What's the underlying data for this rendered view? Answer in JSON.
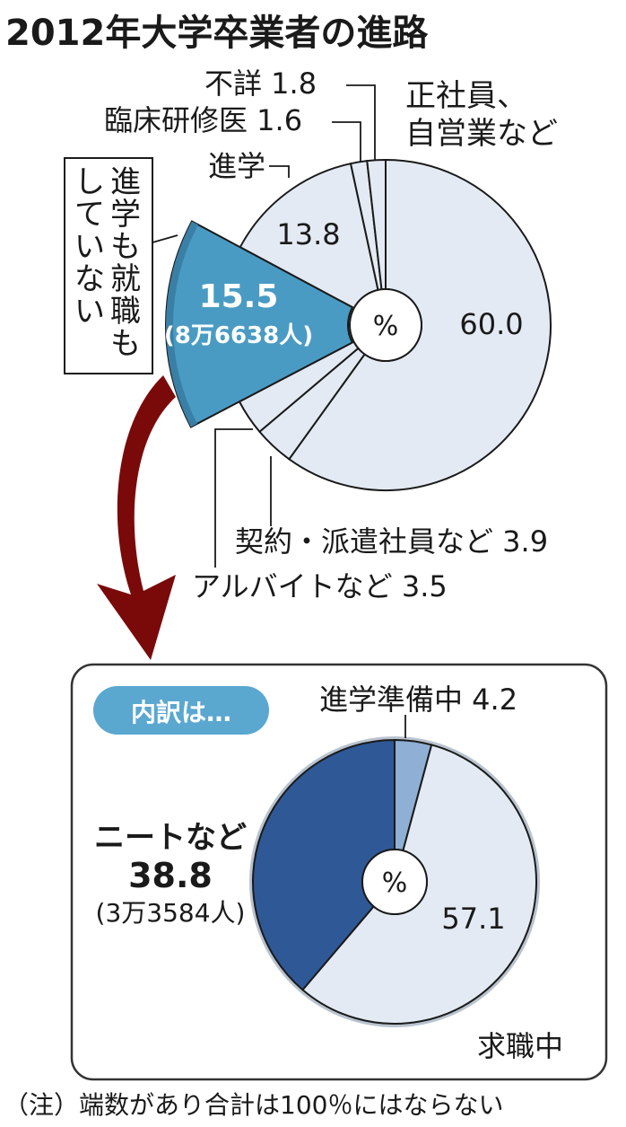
{
  "title": "2012年大学卒業者の進路",
  "percent_symbol": "%",
  "note": "（注）端数があり合計は100％にはならない",
  "chart_data": [
    {
      "type": "pie",
      "id": "main",
      "start_angle_deg": 0,
      "direction": "clockwise",
      "unit": "%",
      "slices": [
        {
          "label": "正社員、自営業など",
          "value": 60.0,
          "value_text": "60.0",
          "color": "#e3eaf3"
        },
        {
          "label": "契約・派遣社員など",
          "value": 3.9,
          "value_text": "3.9",
          "color": "#e3eaf3"
        },
        {
          "label": "アルバイトなど",
          "value": 3.5,
          "value_text": "3.5",
          "color": "#e3eaf3"
        },
        {
          "label": "進学も就職もしていない",
          "value": 15.5,
          "value_text": "15.5",
          "sub_text": "(8万6638人)",
          "color": "#4a9bc3",
          "highlight": true
        },
        {
          "label": "進学",
          "value": 13.8,
          "value_text": "13.8",
          "color": "#e3eaf3"
        },
        {
          "label": "臨床研修医",
          "value": 1.6,
          "value_text": "1.6",
          "color": "#e3eaf3"
        },
        {
          "label": "不詳",
          "value": 1.8,
          "value_text": "1.8",
          "color": "#e3eaf3"
        }
      ]
    },
    {
      "type": "pie",
      "id": "breakdown",
      "title": "内訳は…",
      "start_angle_deg": 0,
      "direction": "clockwise",
      "unit": "%",
      "slices": [
        {
          "label": "進学準備中",
          "value": 4.2,
          "value_text": "4.2",
          "color": "#8fafd4"
        },
        {
          "label": "求職中",
          "value": 57.1,
          "value_text": "57.1",
          "color": "#e3eaf3"
        },
        {
          "label": "ニートなど",
          "value": 38.8,
          "value_text": "38.8",
          "sub_text": "(3万3584人)",
          "color": "#2f5896"
        }
      ]
    }
  ],
  "colors": {
    "outline": "#1a1a1a",
    "pie_fill": "#e3eaf3",
    "highlight_blue": "#4a9bc3",
    "highlight_dark": "#3a7fa6",
    "navy": "#2f5896",
    "light_blue": "#8fafd4",
    "arrow": "#7a0a0a",
    "badge": "#5aa7d0",
    "panel_border": "#333333",
    "rim": "#b9c3cf"
  }
}
